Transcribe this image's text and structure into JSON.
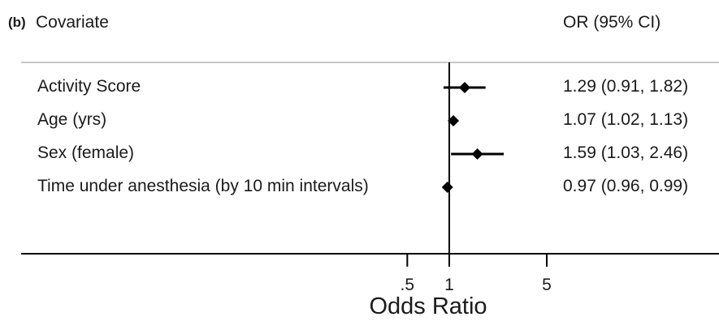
{
  "panel_label": "(b)",
  "header": {
    "covariate": "Covariate",
    "or_ci": "OR (95% CI)"
  },
  "chart_data": {
    "type": "forest",
    "title": "",
    "xlabel": "Odds Ratio",
    "x_scale": "log",
    "reference_line": 1,
    "x_ticks": [
      {
        "value": 0.5,
        "label": ".5"
      },
      {
        "value": 1,
        "label": "1"
      },
      {
        "value": 5,
        "label": "5"
      }
    ],
    "rows": [
      {
        "label": "Activity Score",
        "or": 1.29,
        "lo": 0.91,
        "hi": 1.82,
        "text": "1.29 (0.91, 1.82)"
      },
      {
        "label": "Age (yrs)",
        "or": 1.07,
        "lo": 1.02,
        "hi": 1.13,
        "text": "1.07 (1.02, 1.13)"
      },
      {
        "label": "Sex (female)",
        "or": 1.59,
        "lo": 1.03,
        "hi": 2.46,
        "text": "1.59 (1.03, 2.46)"
      },
      {
        "label": "Time under anesthesia (by 10 min intervals)",
        "or": 0.97,
        "lo": 0.96,
        "hi": 0.99,
        "text": "0.97 (0.96, 0.99)"
      }
    ]
  }
}
